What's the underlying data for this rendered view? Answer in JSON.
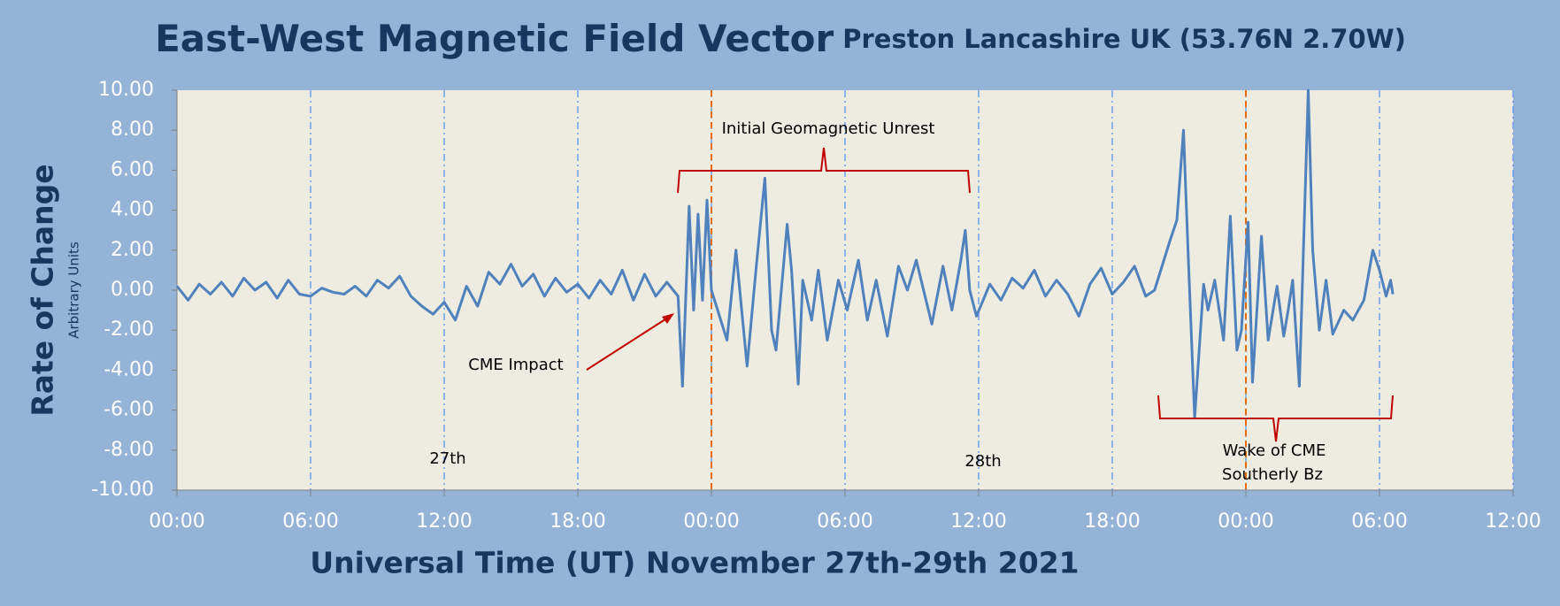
{
  "chart_data": {
    "type": "line",
    "title": "East-West Magnetic Field Vector",
    "subtitle": "Preston Lancashire UK (53.76N 2.70W)",
    "y_label": "Rate of Change",
    "y_sublabel": "Arbitrary Units",
    "x_label": "Universal Time (UT) November 27th-29th 2021",
    "annotations": [
      "Initial Geomagnetic Unrest",
      "CME Impact",
      "27th",
      "28th",
      "Wake of CME",
      "Southerly Bz"
    ],
    "xlim": [
      0,
      60
    ],
    "xticks": [
      {
        "value": 0,
        "label": "00:00"
      },
      {
        "value": 6,
        "label": "06:00"
      },
      {
        "value": 12,
        "label": "12:00"
      },
      {
        "value": 18,
        "label": "18:00"
      },
      {
        "value": 24,
        "label": "00:00"
      },
      {
        "value": 30,
        "label": "06:00"
      },
      {
        "value": 36,
        "label": "12:00"
      },
      {
        "value": 42,
        "label": "18:00"
      },
      {
        "value": 48,
        "label": "00:00"
      },
      {
        "value": 54,
        "label": "06:00"
      },
      {
        "value": 60,
        "label": "12:00"
      }
    ],
    "ylim": [
      -10,
      10
    ],
    "yticks": [
      {
        "value": -10,
        "label": "-10.00"
      },
      {
        "value": -8,
        "label": "-8.00"
      },
      {
        "value": -6,
        "label": "-6.00"
      },
      {
        "value": -4,
        "label": "-4.00"
      },
      {
        "value": -2,
        "label": "-2.00"
      },
      {
        "value": 0,
        "label": "0.00"
      },
      {
        "value": 2,
        "label": "2.00"
      },
      {
        "value": 4,
        "label": "4.00"
      },
      {
        "value": 6,
        "label": "6.00"
      },
      {
        "value": 8,
        "label": "8.00"
      },
      {
        "value": 10,
        "label": "10.00"
      }
    ],
    "grid": true,
    "reference_lines": {
      "values": [
        24,
        48
      ],
      "color": "#e36c09"
    },
    "x": [
      0,
      0.5,
      1,
      1.5,
      2,
      2.5,
      3,
      3.5,
      4,
      4.5,
      5,
      5.5,
      6,
      6.5,
      7,
      7.5,
      8,
      8.5,
      9,
      9.5,
      10,
      10.5,
      11,
      11.5,
      12,
      12.5,
      13,
      13.5,
      14,
      14.5,
      15,
      15.5,
      16,
      16.5,
      17,
      17.5,
      18,
      18.5,
      19,
      19.5,
      20,
      20.5,
      21,
      21.5,
      22,
      22.5,
      22.7,
      23,
      23.2,
      23.4,
      23.6,
      23.8,
      24,
      24.7,
      25.1,
      25.6,
      26,
      26.4,
      26.7,
      26.9,
      27.4,
      27.6,
      27.9,
      28.1,
      28.5,
      28.8,
      29.2,
      29.7,
      30.1,
      30.6,
      31,
      31.4,
      31.9,
      32.4,
      32.8,
      33.2,
      33.9,
      34.4,
      34.8,
      35.2,
      35.4,
      35.6,
      35.9,
      36.5,
      37,
      37.5,
      38,
      38.5,
      39,
      39.5,
      40,
      40.5,
      41,
      41.5,
      42,
      42.5,
      43,
      43.5,
      43.9,
      44.6,
      44.9,
      45.2,
      45.4,
      45.7,
      46.1,
      46.3,
      46.6,
      47,
      47.3,
      47.6,
      47.8,
      48.1,
      48.3,
      48.7,
      49,
      49.4,
      49.7,
      49.9,
      50.1,
      50.4,
      50.8,
      51,
      51.3,
      51.6,
      51.9,
      52.4,
      52.8,
      53.3,
      53.7,
      54,
      54.3,
      54.5,
      54.6
    ],
    "series": [
      {
        "name": "East-West",
        "color": "#4f81bd",
        "values": [
          0.2,
          -0.5,
          0.3,
          -0.2,
          0.4,
          -0.3,
          0.6,
          0,
          0.4,
          -0.4,
          0.5,
          -0.2,
          -0.3,
          0.1,
          -0.1,
          -0.2,
          0.2,
          -0.3,
          0.5,
          0.1,
          0.7,
          -0.3,
          -0.8,
          -1.2,
          -0.6,
          -1.5,
          0.2,
          -0.8,
          0.9,
          0.3,
          1.3,
          0.2,
          0.8,
          -0.3,
          0.6,
          -0.1,
          0.3,
          -0.4,
          0.5,
          -0.2,
          1.0,
          -0.5,
          0.8,
          -0.3,
          0.4,
          -0.3,
          -4.8,
          4.2,
          -1,
          3.8,
          -0.5,
          4.5,
          0,
          -2.5,
          2,
          -3.8,
          1,
          5.6,
          -2,
          -3,
          3.3,
          1,
          -4.7,
          0.5,
          -1.5,
          1,
          -2.5,
          0.5,
          -1,
          1.5,
          -1.5,
          0.5,
          -2.3,
          1.2,
          0,
          1.5,
          -1.7,
          1.2,
          -1,
          1.5,
          3,
          0,
          -1.3,
          0.3,
          -0.5,
          0.6,
          0.1,
          1.0,
          -0.3,
          0.5,
          -0.2,
          -1.3,
          0.3,
          1.1,
          -0.2,
          0.4,
          1.2,
          -0.3,
          0,
          2.5,
          3.5,
          8.0,
          2,
          -6.4,
          0.3,
          -1,
          0.5,
          -2.5,
          3.7,
          -3,
          -2,
          3.4,
          -4.6,
          2.7,
          -2.5,
          0.2,
          -2.3,
          -1,
          0.5,
          -4.8,
          10,
          2,
          -2,
          0.5,
          -2.2,
          -1,
          -1.5,
          -0.5,
          2.0,
          1,
          -0.3,
          0.5,
          -0.2
        ]
      }
    ]
  }
}
